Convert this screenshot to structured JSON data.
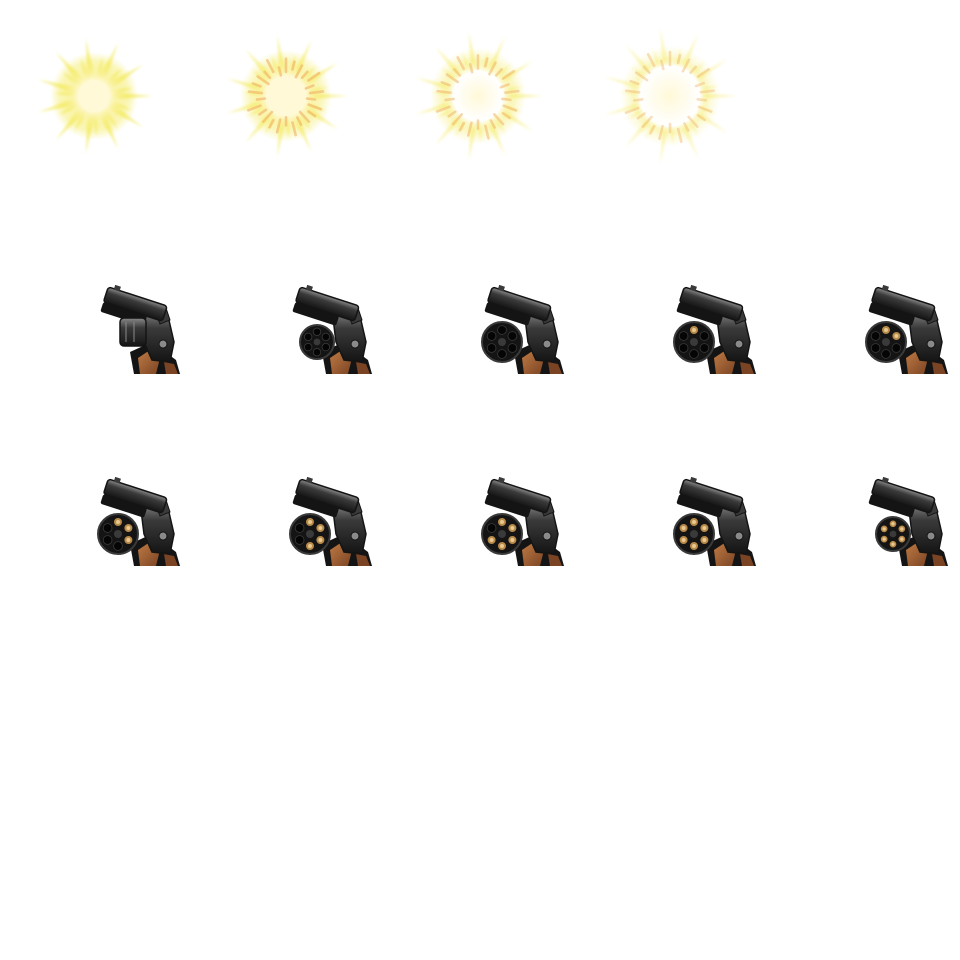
{
  "sheet": {
    "background": "#ffffff",
    "columns": 5,
    "rows": 5
  },
  "colors": {
    "flash_core": "#fff9d8",
    "flash_yellow": "#f1e63a",
    "flash_orange": "#f0b060",
    "gun_steel_dark": "#141414",
    "gun_steel_mid": "#3a3a3a",
    "gun_steel_light": "#8a8a8a",
    "grip_brown": "#7a4424",
    "grip_brown_light": "#c07a44",
    "bullet_brass": "#b88a4a",
    "bullet_primer": "#e8c890"
  },
  "sprites": [
    {
      "kind": "muzzle-flash",
      "frame": 1,
      "intensity": 0.0
    },
    {
      "kind": "muzzle-flash",
      "frame": 2,
      "intensity": 0.33
    },
    {
      "kind": "muzzle-flash",
      "frame": 3,
      "intensity": 0.66
    },
    {
      "kind": "muzzle-flash",
      "frame": 4,
      "intensity": 1.0
    },
    {
      "kind": "revolver-reload",
      "frame": 1,
      "cylinder_open": 0.0,
      "rounds_loaded": 0
    },
    {
      "kind": "revolver-reload",
      "frame": 2,
      "cylinder_open": 0.5,
      "rounds_loaded": 0
    },
    {
      "kind": "revolver-reload",
      "frame": 3,
      "cylinder_open": 1.0,
      "rounds_loaded": 0
    },
    {
      "kind": "revolver-reload",
      "frame": 4,
      "cylinder_open": 1.0,
      "rounds_loaded": 1
    },
    {
      "kind": "revolver-reload",
      "frame": 5,
      "cylinder_open": 1.0,
      "rounds_loaded": 2
    },
    {
      "kind": "revolver-reload",
      "frame": 6,
      "cylinder_open": 1.0,
      "rounds_loaded": 3
    },
    {
      "kind": "revolver-reload",
      "frame": 7,
      "cylinder_open": 1.0,
      "rounds_loaded": 4
    },
    {
      "kind": "revolver-reload",
      "frame": 8,
      "cylinder_open": 1.0,
      "rounds_loaded": 5
    },
    {
      "kind": "revolver-reload",
      "frame": 9,
      "cylinder_open": 1.0,
      "rounds_loaded": 6
    },
    {
      "kind": "revolver-reload",
      "frame": 10,
      "cylinder_open": 0.5,
      "rounds_loaded": 6
    }
  ]
}
